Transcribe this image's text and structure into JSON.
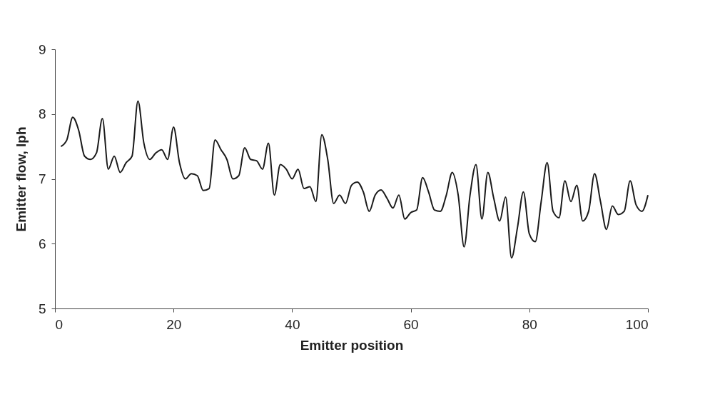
{
  "chart_data": {
    "type": "line",
    "xlabel": "Emitter position",
    "ylabel": "Emitter flow, lph",
    "x": [
      1,
      2,
      3,
      4,
      5,
      6,
      7,
      8,
      9,
      10,
      11,
      12,
      13,
      14,
      15,
      16,
      17,
      18,
      19,
      20,
      21,
      22,
      23,
      24,
      25,
      26,
      27,
      28,
      29,
      30,
      31,
      32,
      33,
      34,
      35,
      36,
      37,
      38,
      39,
      40,
      41,
      42,
      43,
      44,
      45,
      46,
      47,
      48,
      49,
      50,
      51,
      52,
      53,
      54,
      55,
      56,
      57,
      58,
      59,
      60,
      61,
      62,
      63,
      64,
      65,
      66,
      67,
      68,
      69,
      70,
      71,
      72,
      73,
      74,
      75,
      76,
      77,
      78,
      79,
      80,
      81,
      82,
      83,
      84,
      85,
      86,
      87,
      88,
      89,
      90,
      91,
      92,
      93,
      94,
      95,
      96,
      97,
      98,
      99,
      100
    ],
    "series": [
      {
        "color": "#1a1a1a",
        "values": [
          7.5,
          7.6,
          7.95,
          7.75,
          7.35,
          7.3,
          7.4,
          7.93,
          7.15,
          7.35,
          7.1,
          7.25,
          7.35,
          8.2,
          7.55,
          7.3,
          7.4,
          7.45,
          7.3,
          7.8,
          7.25,
          7.0,
          7.08,
          7.05,
          6.82,
          6.85,
          7.6,
          7.45,
          7.3,
          7.0,
          7.05,
          7.48,
          7.3,
          7.28,
          7.15,
          7.55,
          6.75,
          7.22,
          7.15,
          7.0,
          7.15,
          6.85,
          6.88,
          6.65,
          7.68,
          7.3,
          6.62,
          6.75,
          6.62,
          6.9,
          6.95,
          6.8,
          6.5,
          6.75,
          6.83,
          6.7,
          6.55,
          6.75,
          6.38,
          6.48,
          6.52,
          7.02,
          6.8,
          6.52,
          6.5,
          6.75,
          7.1,
          6.75,
          5.95,
          6.75,
          7.22,
          6.38,
          7.1,
          6.7,
          6.35,
          6.72,
          5.78,
          6.25,
          6.8,
          6.15,
          6.03,
          6.65,
          7.25,
          6.5,
          6.4,
          6.97,
          6.65,
          6.9,
          6.35,
          6.5,
          7.08,
          6.65,
          6.22,
          6.58,
          6.45,
          6.5,
          6.97,
          6.6,
          6.5,
          6.75
        ]
      }
    ],
    "xlim": [
      0,
      100
    ],
    "xticks": [
      0,
      20,
      40,
      60,
      80,
      100
    ],
    "ylim": [
      5,
      9
    ],
    "yticks": [
      5,
      6,
      7,
      8,
      9
    ],
    "grid": false,
    "legend": false,
    "marker": "none",
    "line_style": "solid"
  }
}
